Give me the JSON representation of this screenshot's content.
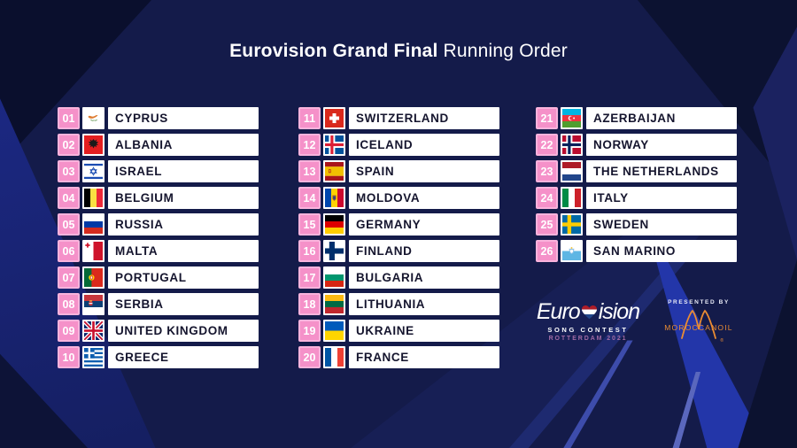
{
  "title": {
    "bold": "Eurovision Grand Final",
    "regular": " Running Order"
  },
  "columns": [
    {
      "entries": [
        {
          "num": "01",
          "name": "CYPRUS",
          "flag": "cyprus"
        },
        {
          "num": "02",
          "name": "ALBANIA",
          "flag": "albania"
        },
        {
          "num": "03",
          "name": "ISRAEL",
          "flag": "israel"
        },
        {
          "num": "04",
          "name": "BELGIUM",
          "flag": "belgium"
        },
        {
          "num": "05",
          "name": "RUSSIA",
          "flag": "russia"
        },
        {
          "num": "06",
          "name": "MALTA",
          "flag": "malta"
        },
        {
          "num": "07",
          "name": "PORTUGAL",
          "flag": "portugal"
        },
        {
          "num": "08",
          "name": "SERBIA",
          "flag": "serbia"
        },
        {
          "num": "09",
          "name": "UNITED KINGDOM",
          "flag": "uk"
        },
        {
          "num": "10",
          "name": "GREECE",
          "flag": "greece"
        }
      ]
    },
    {
      "entries": [
        {
          "num": "11",
          "name": "SWITZERLAND",
          "flag": "switzerland"
        },
        {
          "num": "12",
          "name": "ICELAND",
          "flag": "iceland"
        },
        {
          "num": "13",
          "name": "SPAIN",
          "flag": "spain"
        },
        {
          "num": "14",
          "name": "MOLDOVA",
          "flag": "moldova"
        },
        {
          "num": "15",
          "name": "GERMANY",
          "flag": "germany"
        },
        {
          "num": "16",
          "name": "FINLAND",
          "flag": "finland"
        },
        {
          "num": "17",
          "name": "BULGARIA",
          "flag": "bulgaria"
        },
        {
          "num": "18",
          "name": "LITHUANIA",
          "flag": "lithuania"
        },
        {
          "num": "19",
          "name": "UKRAINE",
          "flag": "ukraine"
        },
        {
          "num": "20",
          "name": "FRANCE",
          "flag": "france"
        }
      ]
    },
    {
      "entries": [
        {
          "num": "21",
          "name": "AZERBAIJAN",
          "flag": "azerbaijan"
        },
        {
          "num": "22",
          "name": "NORWAY",
          "flag": "norway"
        },
        {
          "num": "23",
          "name": "THE NETHERLANDS",
          "flag": "netherlands"
        },
        {
          "num": "24",
          "name": "ITALY",
          "flag": "italy"
        },
        {
          "num": "25",
          "name": "SWEDEN",
          "flag": "sweden"
        },
        {
          "num": "26",
          "name": "SAN MARINO",
          "flag": "sanmarino"
        }
      ]
    }
  ],
  "flags": {
    "cyprus": {
      "type": "plain",
      "bg": "#ffffff",
      "over": [
        "cyprus"
      ]
    },
    "albania": {
      "type": "plain",
      "bg": "#e41e20",
      "over": [
        "albania"
      ]
    },
    "israel": {
      "type": "plain",
      "bg": "#ffffff",
      "over": [
        "israel"
      ]
    },
    "belgium": {
      "type": "v",
      "colors": [
        "#000000",
        "#fae042",
        "#ed2939"
      ]
    },
    "russia": {
      "type": "h",
      "colors": [
        "#ffffff",
        "#0039a6",
        "#d52b1e"
      ]
    },
    "malta": {
      "type": "v",
      "colors": [
        "#ffffff",
        "#cf142b"
      ],
      "over": [
        "malta"
      ]
    },
    "portugal": {
      "type": "v",
      "colors": [
        "#046a38",
        "#da291c"
      ],
      "weights": [
        2,
        3
      ],
      "over": [
        "portugal"
      ]
    },
    "serbia": {
      "type": "h",
      "colors": [
        "#c6363c",
        "#0c4076",
        "#ffffff"
      ],
      "over": [
        "serbia"
      ]
    },
    "uk": {
      "type": "uk"
    },
    "greece": {
      "type": "greece"
    },
    "switzerland": {
      "type": "plain",
      "bg": "#da291c",
      "over": [
        "swiss"
      ]
    },
    "iceland": {
      "type": "nordic",
      "bg": "#02529c",
      "outer": "#ffffff",
      "inner": "#dc1e35"
    },
    "spain": {
      "type": "h",
      "colors": [
        "#aa151b",
        "#f1bf00",
        "#aa151b"
      ],
      "weights": [
        1,
        2,
        1
      ],
      "over": [
        "spain"
      ]
    },
    "moldova": {
      "type": "v",
      "colors": [
        "#0046ae",
        "#ffd200",
        "#cc092f"
      ],
      "over": [
        "moldova"
      ]
    },
    "germany": {
      "type": "h",
      "colors": [
        "#000000",
        "#dd0000",
        "#ffce00"
      ]
    },
    "finland": {
      "type": "nordic",
      "bg": "#ffffff",
      "cross": "#002f6c",
      "cw": 7
    },
    "bulgaria": {
      "type": "h",
      "colors": [
        "#ffffff",
        "#00966e",
        "#d62612"
      ]
    },
    "lithuania": {
      "type": "h",
      "colors": [
        "#fdb913",
        "#006a44",
        "#c1272d"
      ]
    },
    "ukraine": {
      "type": "h",
      "colors": [
        "#005bbb",
        "#ffd500"
      ]
    },
    "france": {
      "type": "v",
      "colors": [
        "#0055a4",
        "#ffffff",
        "#ef4135"
      ]
    },
    "azerbaijan": {
      "type": "h",
      "colors": [
        "#00b5e2",
        "#ef3340",
        "#509e2f"
      ],
      "over": [
        "azerbaijan"
      ]
    },
    "norway": {
      "type": "nordic",
      "bg": "#ba0c2f",
      "outer": "#ffffff",
      "inner": "#00205b"
    },
    "netherlands": {
      "type": "h",
      "colors": [
        "#ae1c28",
        "#ffffff",
        "#21468b"
      ]
    },
    "italy": {
      "type": "v",
      "colors": [
        "#008c45",
        "#ffffff",
        "#cd212a"
      ]
    },
    "sweden": {
      "type": "nordic",
      "bg": "#006aa7",
      "cross": "#fecc02",
      "cw": 5
    },
    "sanmarino": {
      "type": "h",
      "colors": [
        "#ffffff",
        "#5eb6e4"
      ],
      "over": [
        "sanmarino"
      ]
    }
  },
  "footer": {
    "logo": {
      "word_left": "Euro",
      "word_right": "ision",
      "line2": "SONG CONTEST",
      "line3": "ROTTERDAM 2021"
    },
    "presented_by": "PRESENTED BY",
    "sponsor": "MOROCCANOIL",
    "sponsor_reg": "®"
  },
  "colors": {
    "badge_pink": "#f591c9",
    "badge_pink_border": "#f9b3dc",
    "name_text_navy": "#15152e",
    "background_navy": "#141b4a",
    "rotterdam_mauve": "#a16ba4",
    "sponsor_orange": "#ea8c33",
    "dutch_red": "#ae1c28",
    "dutch_blue": "#21468b"
  }
}
